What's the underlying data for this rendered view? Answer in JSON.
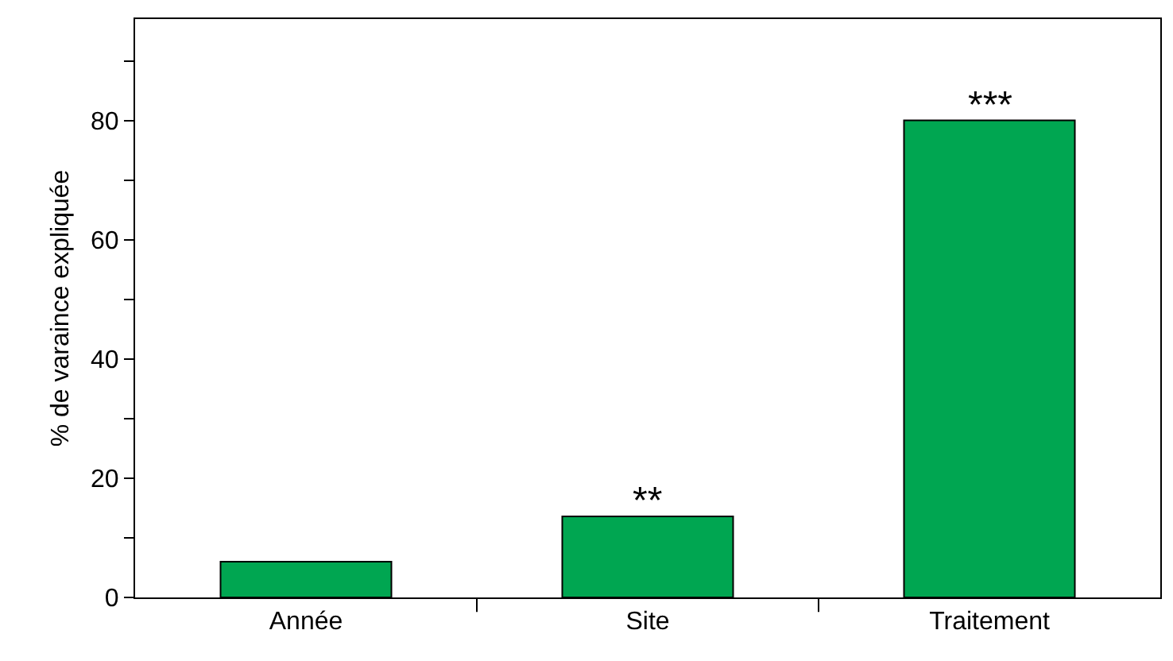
{
  "chart_data": {
    "type": "bar",
    "ylabel": "% de varaince expliquée",
    "categories": [
      "Année",
      "Site",
      "Traitement"
    ],
    "values": [
      6,
      13.6,
      80
    ],
    "color": "#00a651",
    "ylim": [
      0,
      97
    ],
    "yticks": [
      0,
      {
        "value": 10,
        "label": null
      },
      20,
      {
        "value": 30,
        "label": null
      },
      40,
      {
        "value": 50,
        "label": null
      },
      60,
      {
        "value": 70,
        "label": null
      },
      80,
      {
        "value": 90,
        "label": null
      }
    ],
    "grid": false,
    "annotations": [
      {
        "text": "**",
        "x": "Site",
        "y": 13.6
      },
      {
        "text": "***",
        "x": "Traitement",
        "y": 80
      }
    ]
  }
}
